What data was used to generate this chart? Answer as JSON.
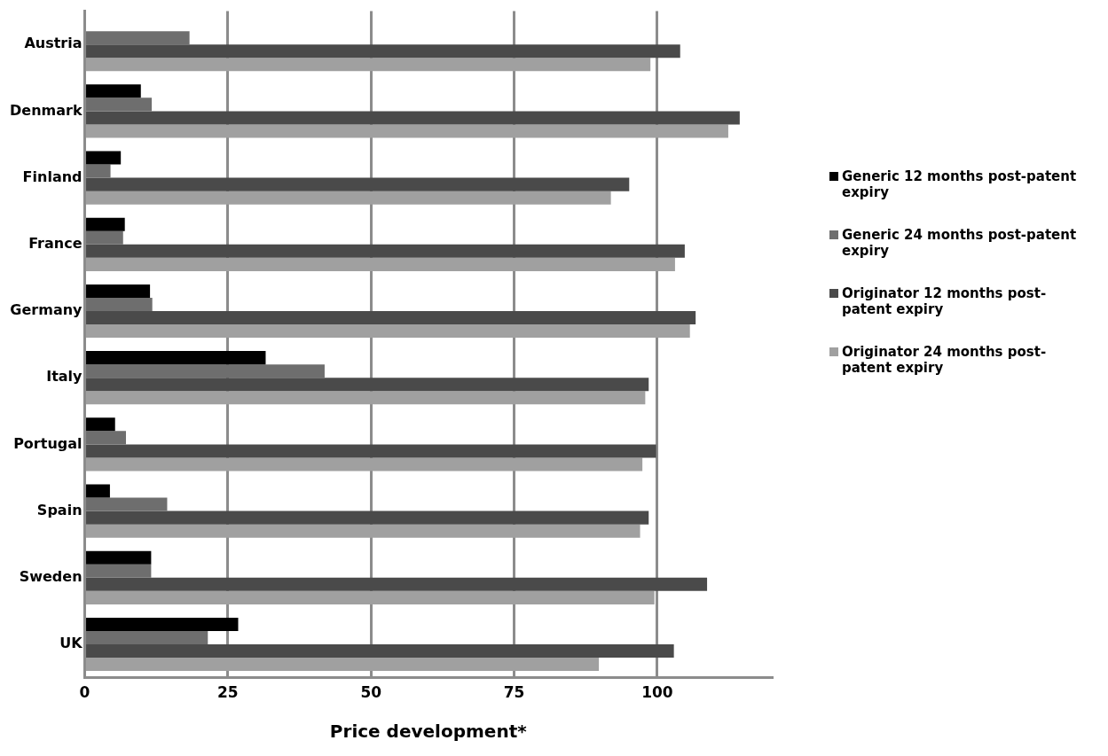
{
  "chart_data": {
    "type": "bar",
    "orientation": "horizontal",
    "xlabel": "Price development*",
    "categories": [
      "Austria",
      "Denmark",
      "Finland",
      "France",
      "Germany",
      "Italy",
      "Portugal",
      "Spain",
      "Sweden",
      "UK"
    ],
    "series": [
      {
        "name": "Generic 12 months post-patent expiry",
        "color": "#000000",
        "values": [
          null,
          9.8,
          6.3,
          7.0,
          11.4,
          31.6,
          5.3,
          4.4,
          11.6,
          26.8
        ]
      },
      {
        "name": "Generic 24 months post-patent expiry",
        "color": "#6e6e6e",
        "values": [
          18.3,
          11.7,
          4.5,
          6.7,
          11.8,
          41.9,
          7.2,
          14.4,
          11.6,
          21.5
        ]
      },
      {
        "name": "Originator 12 months post-patent expiry",
        "color": "#4a4a4a",
        "values": [
          104,
          114.4,
          95.1,
          104.8,
          106.7,
          98.5,
          99.8,
          98.5,
          108.7,
          102.9
        ]
      },
      {
        "name": "Originator 24 months post-patent expiry",
        "color": "#a0a0a0",
        "values": [
          98.8,
          112.4,
          91.9,
          103.1,
          105.7,
          97.9,
          97.4,
          97.0,
          99.5,
          89.8
        ]
      }
    ],
    "xlim": [
      0,
      120
    ],
    "xticks": [
      0,
      25,
      50,
      75,
      100
    ],
    "grid": "x",
    "legend": "right"
  }
}
